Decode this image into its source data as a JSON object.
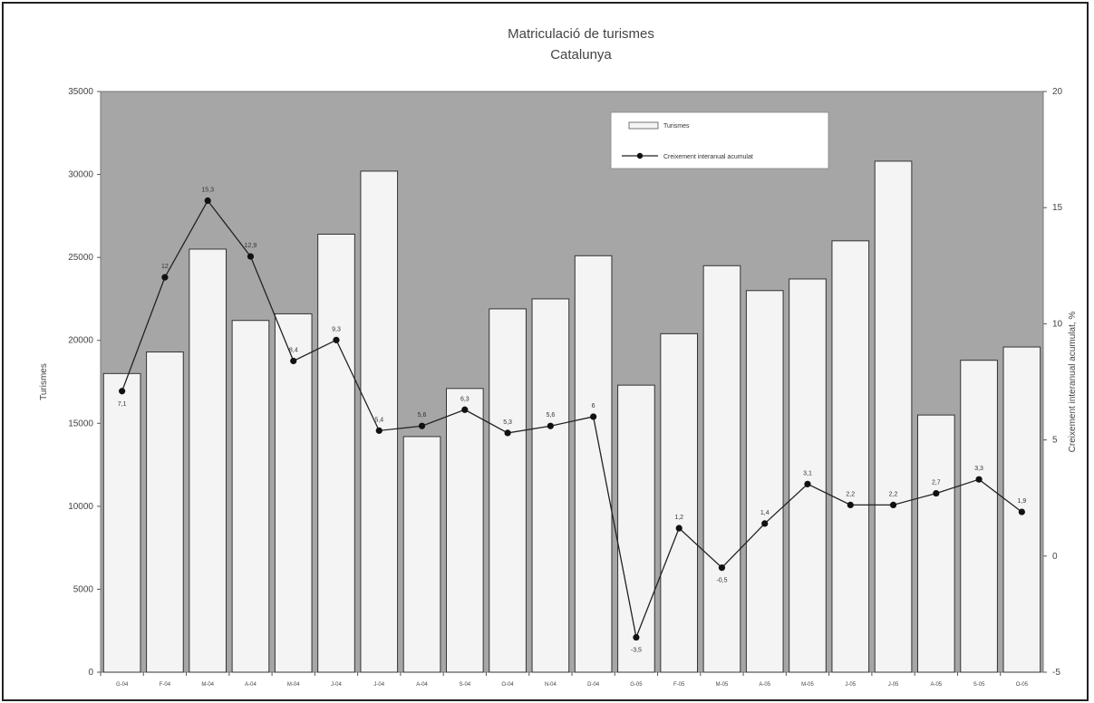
{
  "chart_data": {
    "type": "bar",
    "title": "Matriculació de turismes",
    "subtitle": "Catalunya",
    "ylabel": "Turismes",
    "y2label": "Creixement interanual acumulat, %",
    "ylim": [
      0,
      35000
    ],
    "y2lim": [
      -5,
      20
    ],
    "yticks": [
      "0",
      "5000",
      "10000",
      "15000",
      "20000",
      "25000",
      "30000",
      "35000"
    ],
    "y2ticks": [
      "-5",
      "0",
      "5",
      "10",
      "15",
      "20"
    ],
    "categories": [
      "G-04",
      "F-04",
      "M-04",
      "A-04",
      "M-04",
      "J-04",
      "J-04",
      "A-04",
      "S-04",
      "O-04",
      "N-04",
      "D-04",
      "G-05",
      "F-05",
      "M-05",
      "A-05",
      "M-05",
      "J-05",
      "J-05",
      "A-05",
      "S-05",
      "O-05"
    ],
    "legend_position": "top-right",
    "plot_background": "#a6a6a6",
    "bar_fill": "#f4f4f4",
    "series": [
      {
        "name": "Turismes",
        "type": "bar",
        "axis": "left",
        "values": [
          18000,
          19300,
          25500,
          21200,
          21600,
          26400,
          30200,
          14200,
          17100,
          21900,
          22500,
          25100,
          17300,
          20400,
          24500,
          23000,
          23700,
          26000,
          30800,
          15500,
          18800,
          19600
        ]
      },
      {
        "name": "Creixement interanual acumulat",
        "type": "line",
        "axis": "right",
        "values": [
          7.1,
          12,
          15.3,
          12.9,
          8.4,
          9.3,
          5.4,
          5.6,
          6.3,
          5.3,
          5.6,
          6,
          -3.5,
          1.2,
          -0.5,
          1.4,
          3.1,
          2.2,
          2.2,
          2.7,
          3.3,
          1.9
        ],
        "labels": [
          "7,1",
          "12",
          "15,3",
          "12,9",
          "8,4",
          "9,3",
          "5,4",
          "5,6",
          "6,3",
          "5,3",
          "5,6",
          "6",
          "-3,5",
          "1,2",
          "-0,5",
          "1,4",
          "3,1",
          "2,2",
          "2,2",
          "2,7",
          "3,3",
          "1,9"
        ]
      }
    ]
  }
}
